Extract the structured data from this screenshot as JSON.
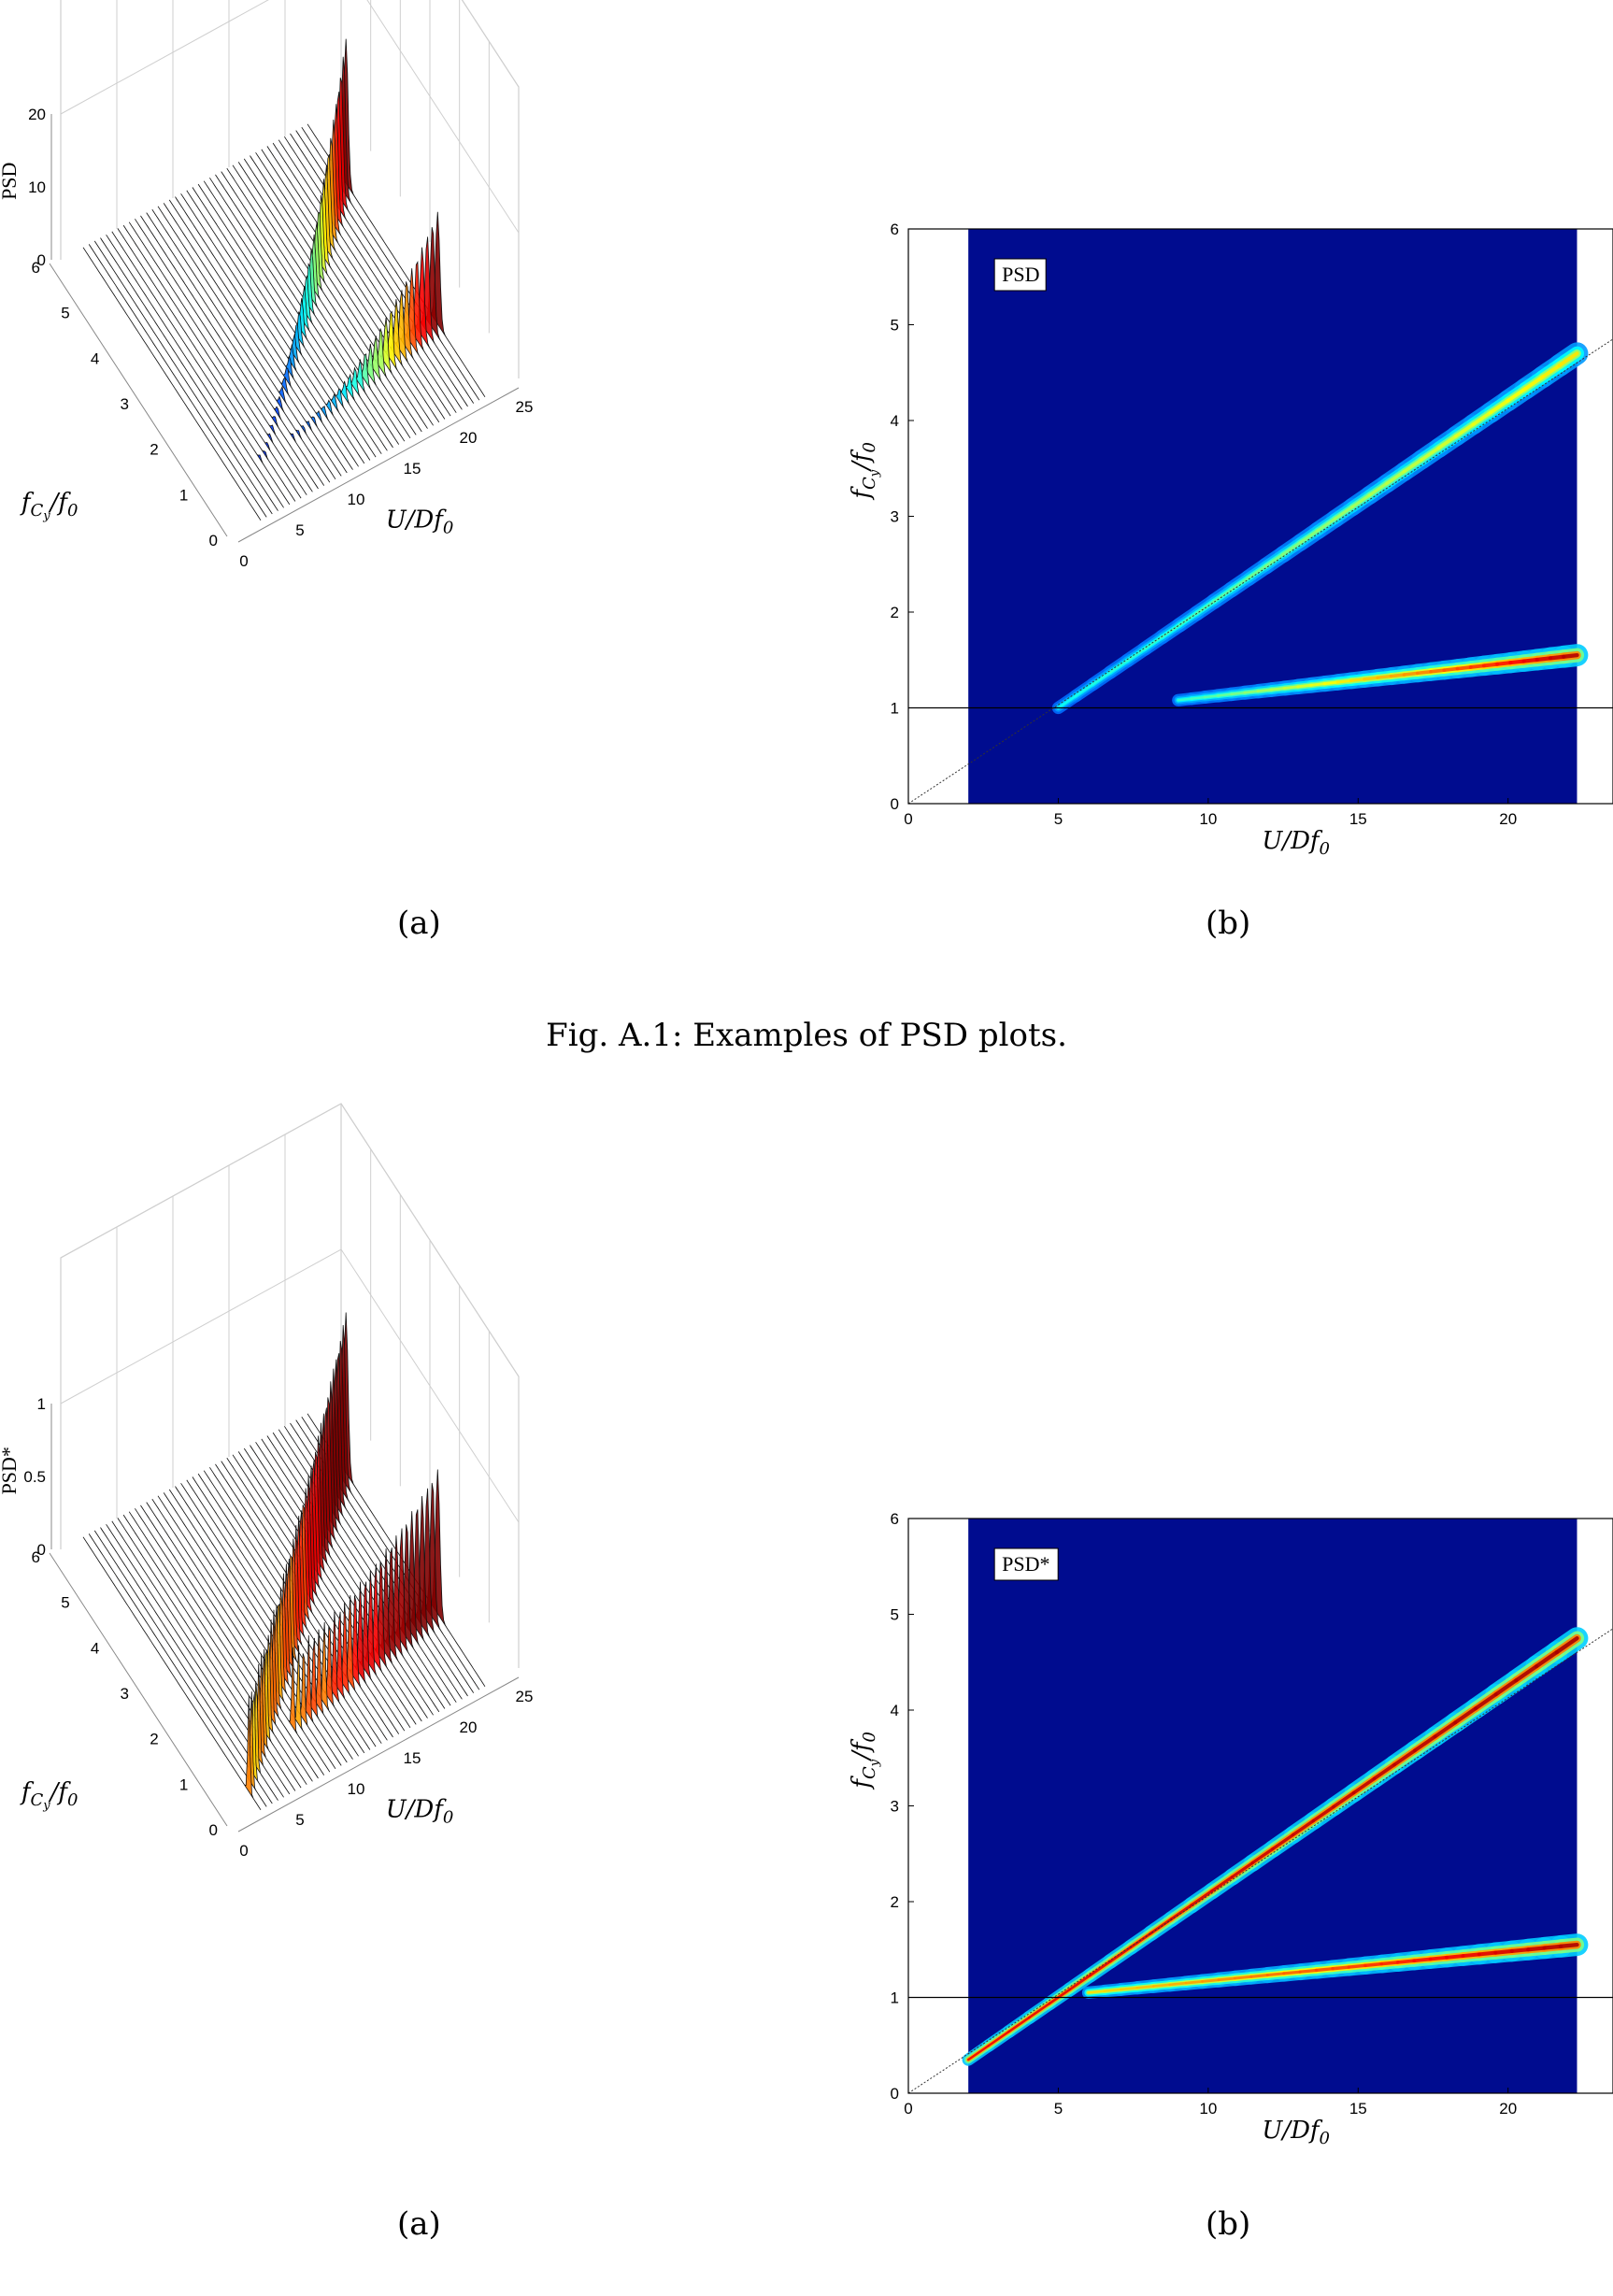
{
  "figures": [
    {
      "panel_a_label": "(a)",
      "panel_b_label": "(b)",
      "caption": "Fig. A.1: Examples of PSD plots."
    },
    {
      "panel_a_label": "(a)",
      "panel_b_label": "(b)"
    }
  ],
  "chart_data": [
    {
      "type": "surface3d",
      "zlabel": "PSD",
      "xlabel": "U/Df0",
      "ylabel": "fCy/f0",
      "xlim": [
        0,
        25
      ],
      "ylim": [
        0,
        6
      ],
      "zlim": [
        0,
        20
      ],
      "x_ticks": [
        "0",
        "5",
        "10",
        "15",
        "20",
        "25"
      ],
      "y_ticks": [
        "0",
        "1",
        "2",
        "3",
        "4",
        "5",
        "6"
      ],
      "z_ticks": [
        "0",
        "10",
        "20"
      ],
      "ridges": [
        {
          "x": [
            5,
            22
          ],
          "y": [
            1.0,
            4.7
          ],
          "z": [
            0.5,
            18
          ]
        },
        {
          "x": [
            8,
            22
          ],
          "y": [
            1.05,
            1.6
          ],
          "z": [
            0.5,
            14
          ]
        }
      ]
    },
    {
      "type": "heatmap",
      "label_box": "PSD",
      "xlabel": "U/Df0",
      "ylabel": "fCy/f0",
      "xlim": [
        0,
        23.5
      ],
      "ylim": [
        0,
        6
      ],
      "x_ticks": [
        0,
        5,
        10,
        15,
        20
      ],
      "y_ticks": [
        0,
        1,
        2,
        3,
        4,
        5,
        6
      ],
      "data_x_range": [
        2,
        22.3
      ],
      "reference_lines": [
        {
          "kind": "horizontal",
          "y": 1
        },
        {
          "kind": "diagonal",
          "x": [
            0,
            23.5
          ],
          "y": [
            0,
            4.85
          ]
        }
      ],
      "ridges": [
        {
          "x": [
            5,
            22.3
          ],
          "y": [
            1.0,
            4.7
          ],
          "intensity": [
            0.25,
            0.6
          ]
        },
        {
          "x": [
            9,
            22.3
          ],
          "y": [
            1.08,
            1.55
          ],
          "intensity": [
            0.3,
            1.0
          ]
        }
      ]
    },
    {
      "type": "surface3d",
      "zlabel": "PSD*",
      "xlabel": "U/Df0",
      "ylabel": "fCy/f0",
      "xlim": [
        0,
        25
      ],
      "ylim": [
        0,
        6
      ],
      "zlim": [
        0,
        1
      ],
      "x_ticks": [
        "0",
        "5",
        "10",
        "15",
        "20",
        "25"
      ],
      "y_ticks": [
        "0",
        "1",
        "2",
        "3",
        "4",
        "5",
        "6"
      ],
      "z_ticks": [
        "0",
        "0.5",
        "1"
      ],
      "ridges": [
        {
          "x": [
            2,
            22
          ],
          "y": [
            0.4,
            4.7
          ],
          "z": [
            0.6,
            1.0
          ]
        },
        {
          "x": [
            8,
            22
          ],
          "y": [
            1.05,
            1.6
          ],
          "z": [
            0.5,
            0.9
          ]
        }
      ]
    },
    {
      "type": "heatmap",
      "label_box": "PSD*",
      "xlabel": "U/Df0",
      "ylabel": "fCy/f0",
      "xlim": [
        0,
        23.5
      ],
      "ylim": [
        0,
        6
      ],
      "x_ticks": [
        0,
        5,
        10,
        15,
        20
      ],
      "y_ticks": [
        0,
        1,
        2,
        3,
        4,
        5,
        6
      ],
      "data_x_range": [
        2,
        22.3
      ],
      "reference_lines": [
        {
          "kind": "horizontal",
          "y": 1
        },
        {
          "kind": "diagonal",
          "x": [
            0,
            23.5
          ],
          "y": [
            0,
            4.85
          ]
        }
      ],
      "ridges": [
        {
          "x": [
            2,
            22.3
          ],
          "y": [
            0.35,
            4.75
          ],
          "intensity": [
            0.9,
            1.0
          ]
        },
        {
          "x": [
            6,
            22.3
          ],
          "y": [
            1.05,
            1.55
          ],
          "intensity": [
            0.6,
            1.0
          ]
        }
      ]
    }
  ]
}
